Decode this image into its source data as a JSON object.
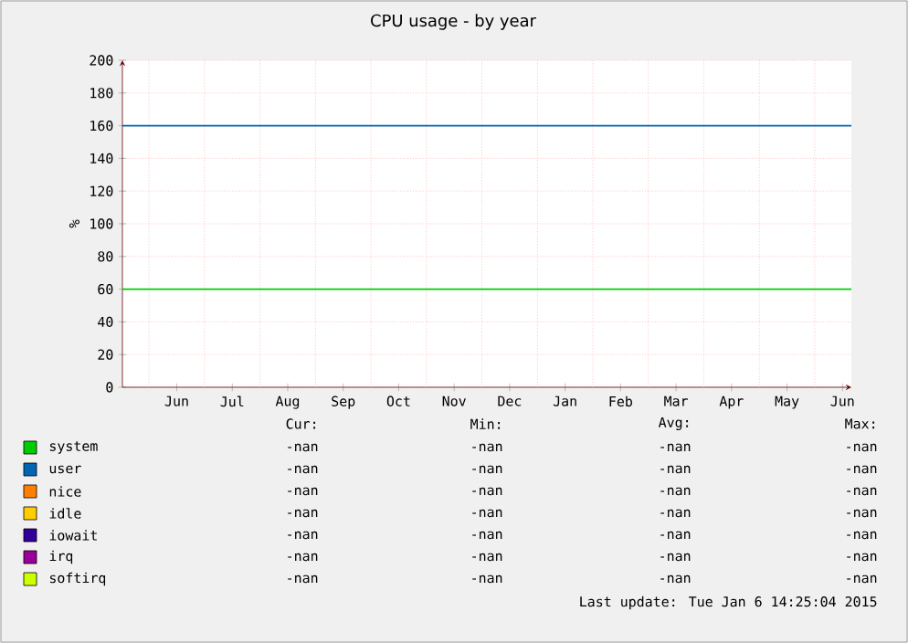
{
  "chart_data": {
    "type": "line",
    "title": "CPU usage - by year",
    "ylabel": "%",
    "categories": [
      "Jun",
      "Jul",
      "Aug",
      "Sep",
      "Oct",
      "Nov",
      "Dec",
      "Jan",
      "Feb",
      "Mar",
      "Apr",
      "May",
      "Jun"
    ],
    "ylim": [
      0,
      200
    ],
    "yticks": [
      0,
      20,
      40,
      60,
      80,
      100,
      120,
      140,
      160,
      180,
      200
    ],
    "grid": true,
    "legend": "bottom",
    "series": [
      {
        "name": "system",
        "color": "#00cc00",
        "values": [
          null,
          null,
          null,
          null,
          null,
          null,
          null,
          null,
          null,
          null,
          null,
          null,
          null
        ]
      },
      {
        "name": "user",
        "color": "#0066b3",
        "values": [
          null,
          null,
          null,
          null,
          null,
          null,
          null,
          null,
          null,
          null,
          null,
          null,
          null
        ]
      },
      {
        "name": "nice",
        "color": "#ff8000",
        "values": [
          null,
          null,
          null,
          null,
          null,
          null,
          null,
          null,
          null,
          null,
          null,
          null,
          null
        ]
      },
      {
        "name": "idle",
        "color": "#ffcc00",
        "values": [
          null,
          null,
          null,
          null,
          null,
          null,
          null,
          null,
          null,
          null,
          null,
          null,
          null
        ]
      },
      {
        "name": "iowait",
        "color": "#330099",
        "values": [
          null,
          null,
          null,
          null,
          null,
          null,
          null,
          null,
          null,
          null,
          null,
          null,
          null
        ]
      },
      {
        "name": "irq",
        "color": "#990099",
        "values": [
          null,
          null,
          null,
          null,
          null,
          null,
          null,
          null,
          null,
          null,
          null,
          null,
          null
        ]
      },
      {
        "name": "softirq",
        "color": "#ccff00",
        "values": [
          null,
          null,
          null,
          null,
          null,
          null,
          null,
          null,
          null,
          null,
          null,
          null,
          null
        ]
      }
    ],
    "ref_lines": [
      {
        "axis": "y",
        "value": 160,
        "color": "#0066b3"
      },
      {
        "axis": "y",
        "value": 60,
        "color": "#00cc00"
      }
    ],
    "annotations": [
      "Cur:",
      "Min:",
      "Avg:",
      "Max:",
      "-nan",
      "-nan",
      "-nan",
      "-nan",
      "-nan",
      "-nan",
      "-nan",
      "-nan",
      "-nan",
      "-nan",
      "-nan",
      "-nan",
      "-nan",
      "-nan",
      "-nan",
      "-nan",
      "-nan",
      "-nan",
      "-nan",
      "-nan",
      "-nan",
      "-nan",
      "-nan",
      "-nan",
      "-nan",
      "-nan",
      "-nan",
      "-nan",
      "Last update:  Tue Jan  6 14:25:04 2015"
    ]
  }
}
